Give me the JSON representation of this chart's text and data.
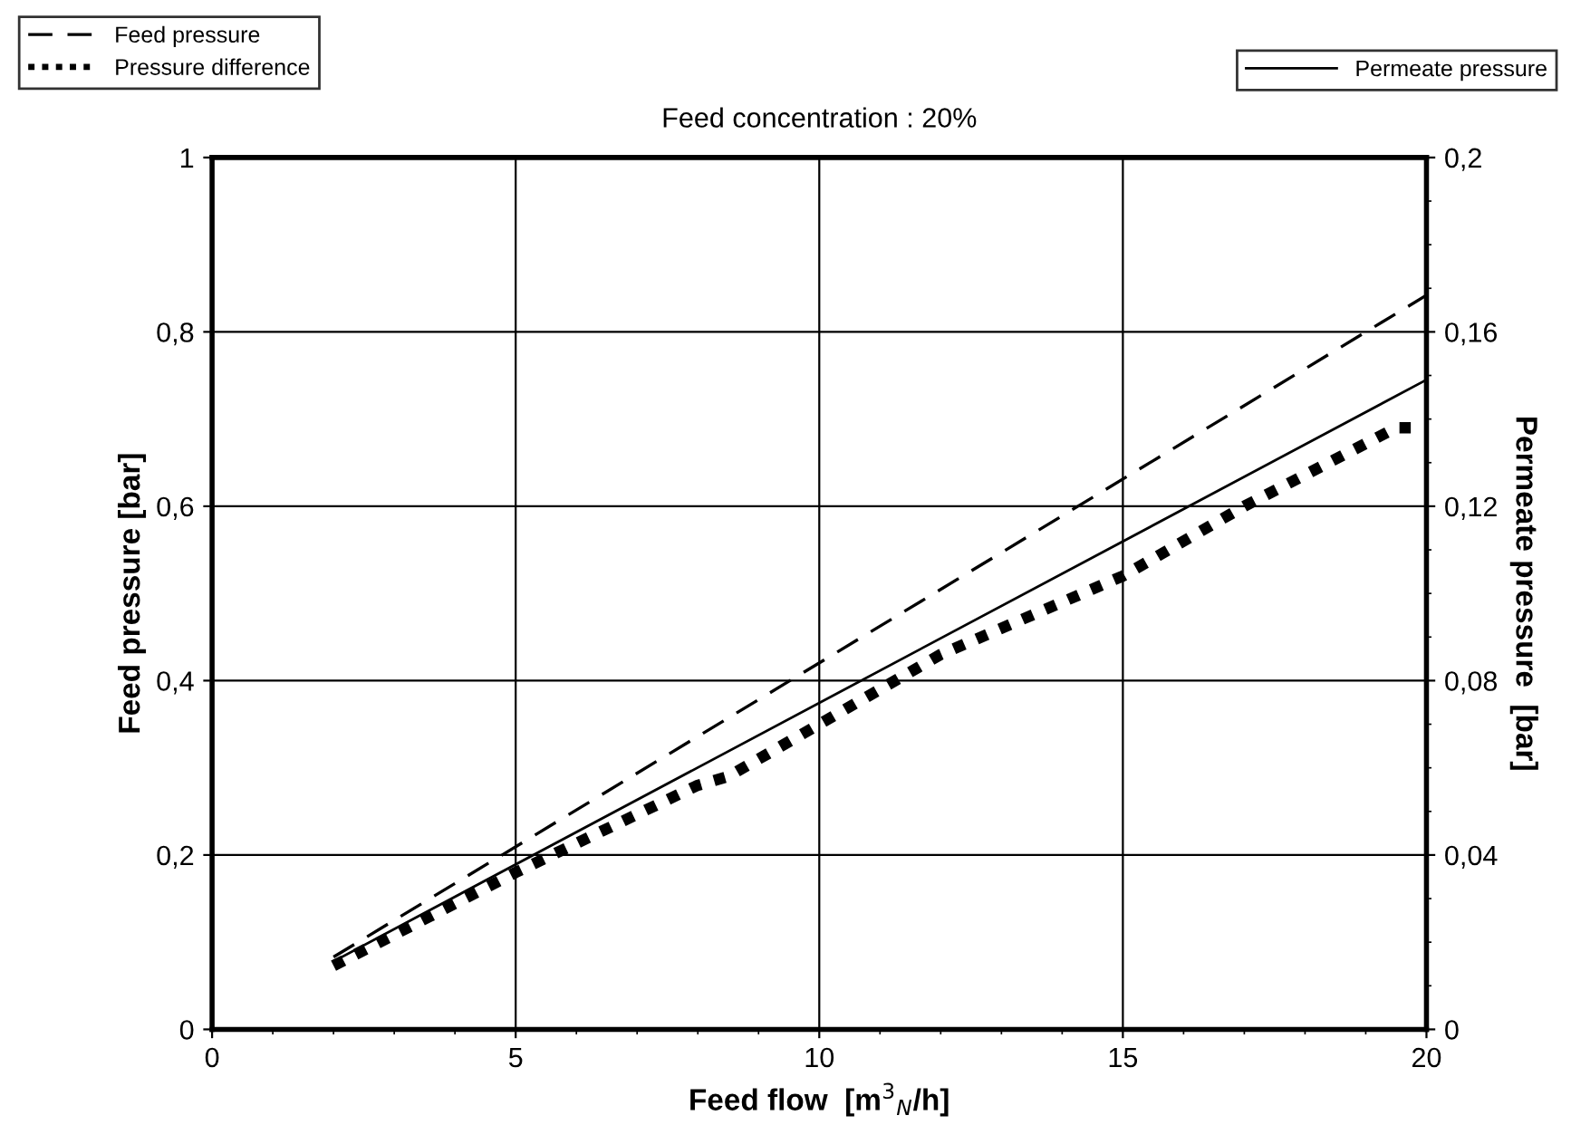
{
  "chart_data": {
    "type": "line",
    "title": "Feed concentration : 20%",
    "xlabel": "Feed flow  [m$^{3}$$_{N}$/h]",
    "ylabel": "Feed pressure [bar]",
    "y2label": "Permeate pressure  [bar]",
    "series": [
      {
        "name": "Feed pressure",
        "color": "#000000",
        "line_style": "dashed",
        "x": [
          2,
          20
        ],
        "values": [
          0.083,
          0.842
        ]
      },
      {
        "name": "Pressure difference",
        "color": "#000000",
        "line_style": "dotted",
        "x": [
          2,
          5,
          8,
          8.5,
          10,
          12,
          15,
          16,
          17,
          19.5,
          20
        ],
        "values": [
          0.073,
          0.18,
          0.28,
          0.29,
          0.35,
          0.43,
          0.52,
          0.56,
          0.6,
          0.69,
          0.69
        ]
      },
      {
        "name": "Permeate pressure",
        "color": "#000000",
        "line_style": "solid",
        "axis": "y2",
        "x": [
          2,
          20
        ],
        "values": [
          0.0156,
          0.149
        ]
      }
    ],
    "xlim": [
      0,
      20
    ],
    "xticks": [
      0,
      5,
      10,
      15,
      20
    ],
    "ylim": [
      0,
      1
    ],
    "yticks": [
      0,
      {
        "value": 0.2,
        "label": "0,2"
      },
      {
        "value": 0.4,
        "label": "0,4"
      },
      {
        "value": 0.6,
        "label": "0,6"
      },
      {
        "value": 0.8,
        "label": "0,8"
      },
      1
    ],
    "y2lim": [
      0,
      0.2
    ],
    "y2ticks": [
      0,
      {
        "value": 0.04,
        "label": "0,04"
      },
      {
        "value": 0.08,
        "label": "0,08"
      },
      {
        "value": 0.12,
        "label": "0,12"
      },
      {
        "value": 0.16,
        "label": "0,16"
      },
      {
        "value": 0.2,
        "label": "0,2"
      }
    ],
    "grid": true,
    "legend": "top"
  }
}
